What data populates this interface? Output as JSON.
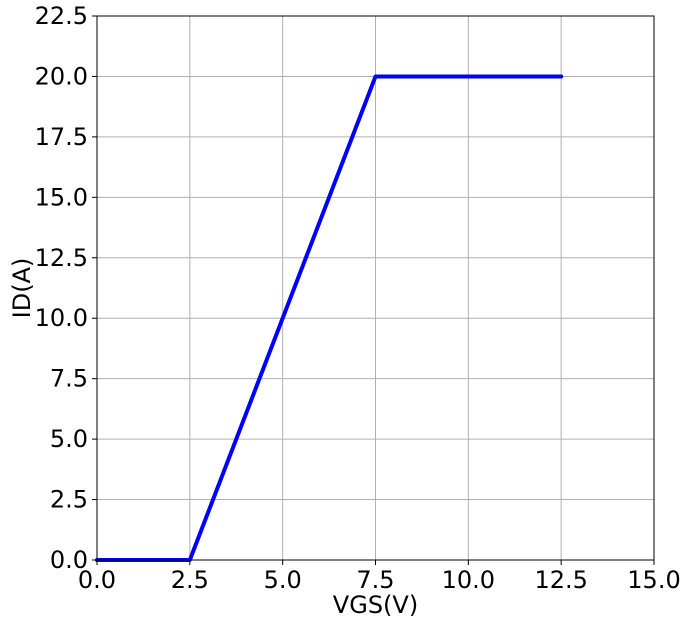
{
  "chart_data": {
    "type": "line",
    "title": "",
    "xlabel": "VGS(V)",
    "ylabel": "ID(A)",
    "xlim": [
      0,
      15
    ],
    "ylim": [
      0,
      22.5
    ],
    "xticks": [
      0,
      2.5,
      5,
      7.5,
      10,
      12.5,
      15
    ],
    "xtick_labels": [
      "0.0",
      "2.5",
      "5.0",
      "7.5",
      "10.0",
      "12.5",
      "15.0"
    ],
    "yticks": [
      0,
      2.5,
      5,
      7.5,
      10,
      12.5,
      15,
      17.5,
      20,
      22.5
    ],
    "ytick_labels": [
      "0.0",
      "2.5",
      "5.0",
      "7.5",
      "10.0",
      "12.5",
      "15.0",
      "17.5",
      "20.0",
      "22.5"
    ],
    "grid": true,
    "series": [
      {
        "color": "#0000ff",
        "x": [
          0,
          2.5,
          7.5,
          12.5
        ],
        "y": [
          0,
          0,
          20,
          20
        ]
      }
    ]
  }
}
